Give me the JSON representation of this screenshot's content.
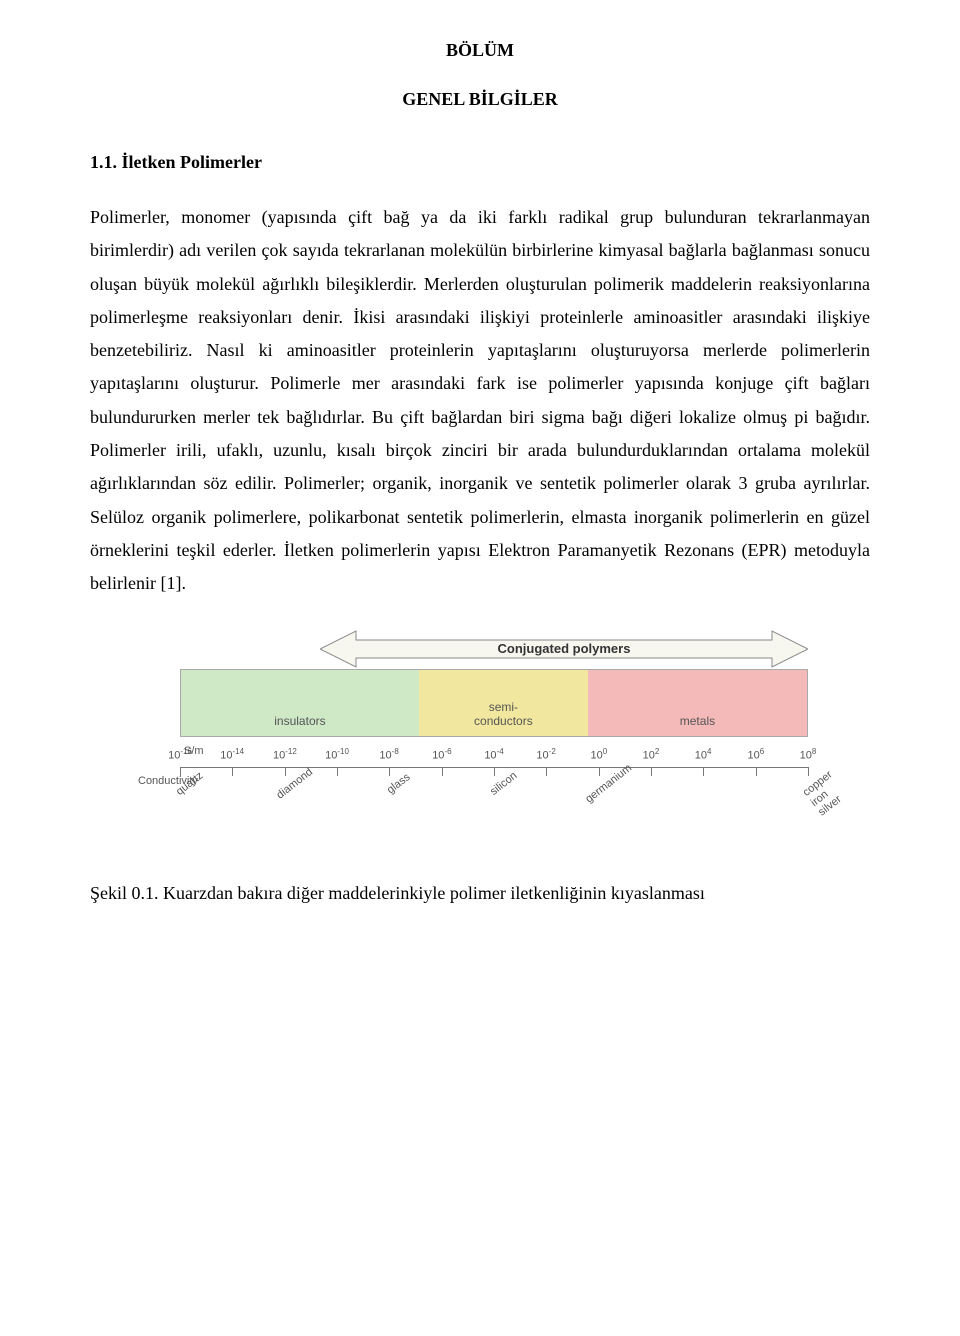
{
  "chapter": {
    "label": "BÖLÜM",
    "title": "GENEL BİLGİLER"
  },
  "section": {
    "heading": "1.1. İletken Polimerler",
    "body": "Polimerler, monomer (yapısında çift bağ ya da iki farklı radikal grup bulunduran tekrarlanmayan birimlerdir) adı verilen çok sayıda tekrarlanan molekülün birbirlerine kimyasal bağlarla bağlanması sonucu oluşan büyük molekül ağırlıklı bileşiklerdir. Merlerden oluşturulan polimerik maddelerin reaksiyonlarına polimerleşme reaksiyonları denir. İkisi arasındaki ilişkiyi proteinlerle aminoasitler arasındaki ilişkiye benzetebiliriz. Nasıl ki aminoasitler proteinlerin yapıtaşlarını oluşturuyorsa merlerde polimerlerin yapıtaşlarını oluşturur. Polimerle mer arasındaki fark ise polimerler yapısında konjuge çift bağları bulundururken merler tek bağlıdırlar. Bu çift bağlardan biri sigma bağı diğeri lokalize olmuş pi bağıdır. Polimerler irili, ufaklı, uzunlu, kısalı birçok zinciri bir arada bulundurduklarından ortalama molekül ağırlıklarından söz edilir. Polimerler; organik, inorganik ve sentetik polimerler olarak 3 gruba ayrılırlar. Selüloz organik polimerlere, polikarbonat sentetik polimerlerin, elmasta inorganik polimerlerin en güzel örneklerini teşkil ederler. İletken polimerlerin yapısı Elektron Paramanyetik Rezonans (EPR) metoduyla belirlenir [1]."
  },
  "figure": {
    "arrow_label": "Conjugated polymers",
    "arrow_fill": "#f7f7f0",
    "arrow_stroke": "#888888",
    "segments": [
      {
        "label": "insulators",
        "color": "#cfe8c6"
      },
      {
        "label": "semi-\nconductors",
        "color": "#f2e79e"
      },
      {
        "label": "metals",
        "color": "#f4b9b9"
      }
    ],
    "unit": "S/m",
    "axis_label": "Conductivity",
    "ticks": [
      {
        "pos": 0.0,
        "exp": "-16",
        "material": "quartz"
      },
      {
        "pos": 0.083,
        "exp": "-14",
        "material": ""
      },
      {
        "pos": 0.167,
        "exp": "-12",
        "material": "diamond"
      },
      {
        "pos": 0.25,
        "exp": "-10",
        "material": ""
      },
      {
        "pos": 0.333,
        "exp": "-8",
        "material": "glass"
      },
      {
        "pos": 0.417,
        "exp": "-6",
        "material": ""
      },
      {
        "pos": 0.5,
        "exp": "-4",
        "material": "silicon"
      },
      {
        "pos": 0.583,
        "exp": "-2",
        "material": ""
      },
      {
        "pos": 0.667,
        "exp": "0",
        "material": "germanium"
      },
      {
        "pos": 0.75,
        "exp": "2",
        "material": ""
      },
      {
        "pos": 0.833,
        "exp": "4",
        "material": ""
      },
      {
        "pos": 0.917,
        "exp": "6",
        "material": ""
      },
      {
        "pos": 1.0,
        "exp": "8",
        "material": "copper\niron\nsilver"
      }
    ]
  },
  "caption": "Şekil 0.1. Kuarzdan bakıra diğer maddelerinkiyle polimer iletkenliğinin kıyaslanması"
}
